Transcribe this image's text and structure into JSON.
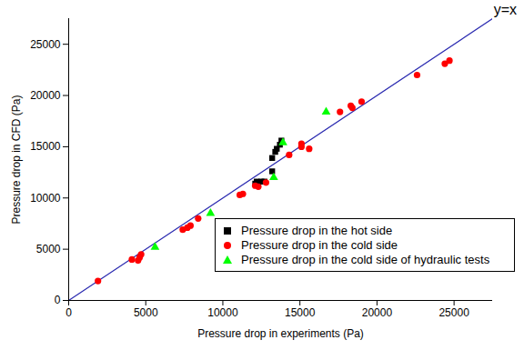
{
  "chart_data": {
    "type": "scatter",
    "xlabel": "Pressure drop in experiments (Pa)",
    "ylabel": "Pressure drop in CFD (Pa)",
    "xlim": [
      0,
      27500
    ],
    "ylim": [
      0,
      27500
    ],
    "xticks": [
      0,
      5000,
      10000,
      15000,
      20000,
      25000
    ],
    "yticks": [
      0,
      5000,
      10000,
      15000,
      20000,
      25000
    ],
    "grid": false,
    "legend": "lower right",
    "series": [
      {
        "name": "y=x",
        "type": "line",
        "color": "#2a2ab0",
        "x": [
          0,
          27500
        ],
        "values": [
          0,
          27500
        ]
      },
      {
        "name": "Pressure drop in the hot side",
        "type": "scatter",
        "color": "#000000",
        "marker": "square",
        "x": [
          12100,
          12200,
          12300,
          12500,
          12700,
          13200,
          13200,
          13400,
          13500,
          13700,
          13800
        ],
        "values": [
          11400,
          11600,
          11500,
          11600,
          11600,
          12600,
          13900,
          14500,
          14800,
          15200,
          15600
        ]
      },
      {
        "name": "Pressure drop in the cold side",
        "type": "scatter",
        "color": "#ff0000",
        "marker": "circle",
        "x": [
          1900,
          4100,
          4500,
          4600,
          4700,
          7400,
          7700,
          7900,
          8400,
          11100,
          11300,
          12100,
          12300,
          12800,
          14300,
          15100,
          15100,
          15600,
          17600,
          18300,
          18400,
          19000,
          22600,
          24400,
          24700
        ],
        "values": [
          1900,
          4000,
          3900,
          4200,
          4500,
          6900,
          7100,
          7300,
          8000,
          10300,
          10400,
          11200,
          11100,
          11500,
          14200,
          15300,
          15000,
          14800,
          18400,
          19000,
          18800,
          19400,
          22000,
          23100,
          23400
        ]
      },
      {
        "name": "Pressure drop in the cold side of hydraulic tests",
        "type": "scatter",
        "color": "#00ff00",
        "marker": "triangle",
        "x": [
          5600,
          9200,
          13300,
          13900,
          16700
        ],
        "values": [
          5200,
          8500,
          12000,
          15400,
          18400
        ]
      }
    ]
  }
}
